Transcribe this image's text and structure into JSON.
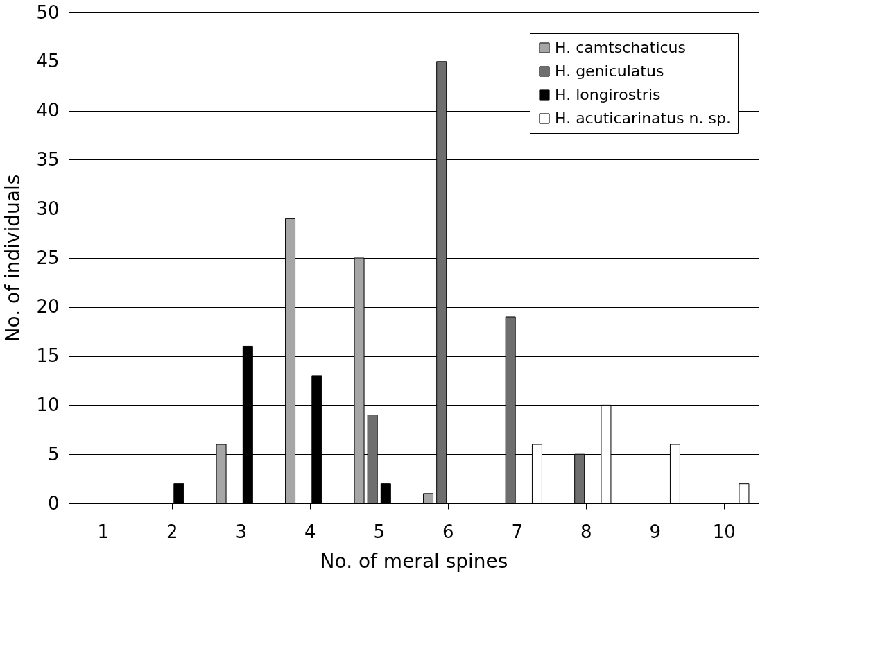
{
  "chart_data": {
    "type": "bar",
    "xlabel": "No. of meral spines",
    "ylabel": "No. of individuals",
    "categories": [
      "1",
      "2",
      "3",
      "4",
      "5",
      "6",
      "7",
      "8",
      "9",
      "10"
    ],
    "series": [
      {
        "name": "H. camtschaticus",
        "color": "#a6a6a6",
        "values": [
          null,
          null,
          6,
          29,
          25,
          1,
          null,
          null,
          null,
          null
        ]
      },
      {
        "name": "H. geniculatus",
        "color": "#6e6e6e",
        "values": [
          null,
          null,
          null,
          null,
          9,
          45,
          19,
          5,
          null,
          null
        ]
      },
      {
        "name": "H. longirostris",
        "color": "#000000",
        "values": [
          null,
          2,
          16,
          13,
          2,
          null,
          null,
          null,
          null,
          null
        ]
      },
      {
        "name": "H. acuticarinatus n. sp.",
        "color": "#ffffff",
        "values": [
          null,
          null,
          null,
          null,
          null,
          null,
          6,
          10,
          6,
          2
        ]
      }
    ],
    "ylim": [
      0,
      50
    ],
    "yticks": [
      0,
      5,
      10,
      15,
      20,
      25,
      30,
      35,
      40,
      45,
      50
    ],
    "grid": "y",
    "legend": "top right"
  }
}
